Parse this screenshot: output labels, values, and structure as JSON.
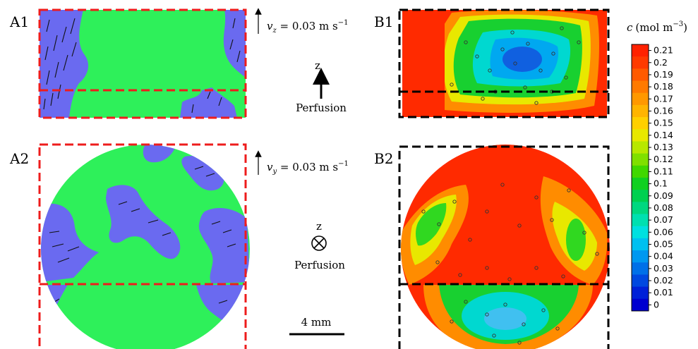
{
  "panels": {
    "a1": "A1",
    "a2": "A2",
    "b1": "B1",
    "b2": "B2"
  },
  "annotations": {
    "vz_symbol": "v",
    "vz_sub": "z",
    "vz_value": " = 0.03 m s",
    "vz_exp": "−1",
    "vy_symbol": "v",
    "vy_sub": "y",
    "vy_value": " = 0.03 m s",
    "vy_exp": "−1",
    "z_top": "z",
    "perfusion_top": "Perfusion",
    "z_bottom": "z",
    "perfusion_bottom": "Perfusion",
    "scale_bar": "4 mm"
  },
  "colorbar": {
    "title_symbol": "c",
    "title_units": "(mol m",
    "title_exp": "−3",
    "title_close": ")",
    "ticks": [
      "0.21",
      "0.2",
      "0.19",
      "0.18",
      "0.17",
      "0.16",
      "0.15",
      "0.14",
      "0.13",
      "0.12",
      "0.11",
      "0.1",
      "0.09",
      "0.08",
      "0.07",
      "0.06",
      "0.05",
      "0.04",
      "0.03",
      "0.02",
      "0.01",
      "0"
    ],
    "colors": [
      "#ff2200",
      "#ff3a00",
      "#ff5a00",
      "#ff7a00",
      "#ff9800",
      "#ffb400",
      "#ffd000",
      "#e8e800",
      "#b8e800",
      "#80e000",
      "#40d800",
      "#10d020",
      "#00d050",
      "#00d880",
      "#00e0b0",
      "#00e0e0",
      "#00c0f0",
      "#0098f0",
      "#0070e8",
      "#0048e0",
      "#0020d8",
      "#0000d0"
    ]
  },
  "colors": {
    "fluid_blue": "#6a6af0",
    "scaffold_green": "#2ef05a",
    "dash_red": "#ee1c1c",
    "dash_black": "#000000",
    "conc_high": "#ff2a00"
  }
}
